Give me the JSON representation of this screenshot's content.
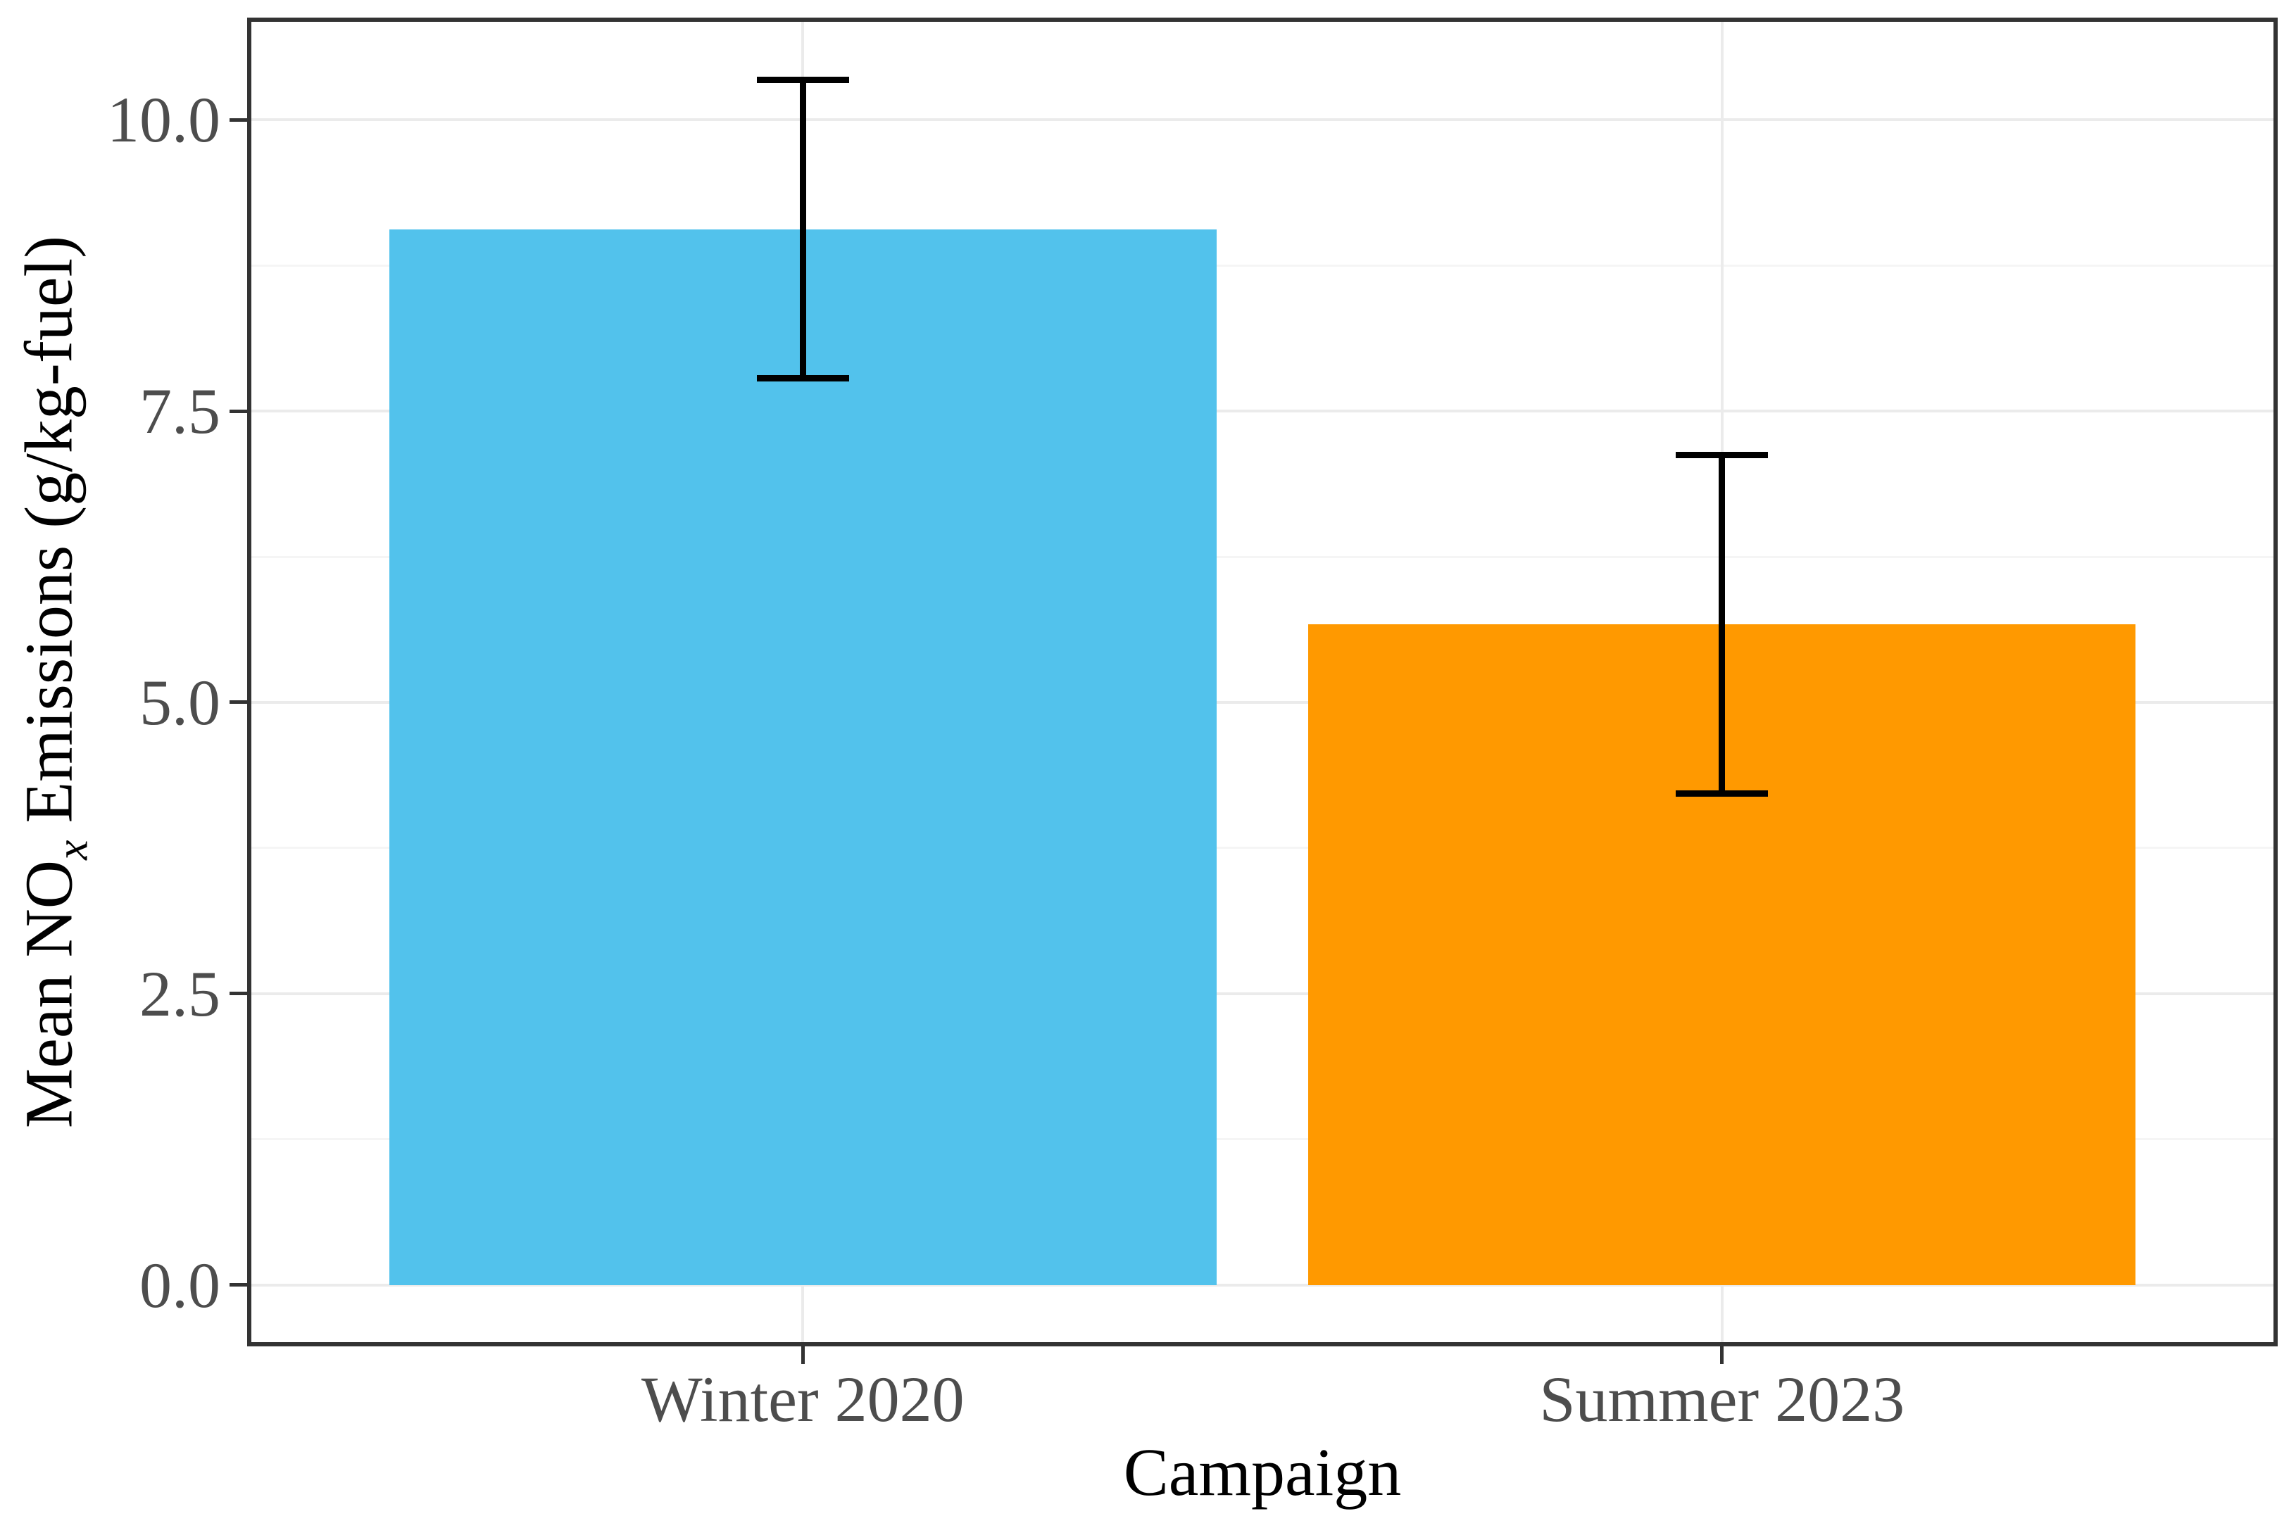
{
  "figure": {
    "background": "#FFFFFF"
  },
  "chart_data": {
    "type": "bar",
    "title": "",
    "xlabel": "Campaign",
    "ylabel_parts": {
      "prefix": "Mean NO",
      "sub": "x",
      "suffix": " Emissions (g/kg-fuel)"
    },
    "categories": [
      "Winter 2020",
      "Summer 2023"
    ],
    "values": [
      9.06,
      5.67
    ],
    "error_low": [
      7.78,
      4.22
    ],
    "error_high": [
      10.34,
      7.12
    ],
    "bar_colors": [
      "#52C2EC",
      "#FF9900"
    ],
    "ylim": [
      -0.49,
      10.84
    ],
    "y_major_ticks": [
      0,
      2.5,
      5,
      7.5,
      10
    ],
    "y_major_labels": [
      "0.0",
      "2.5",
      "5.0",
      "7.5",
      "10.0"
    ],
    "y_minor_ticks": [
      1.25,
      3.75,
      6.25,
      8.75
    ],
    "legend": "none",
    "grid": {
      "major_color": "#EBEBEB",
      "minor_color": "#F5F5F5"
    },
    "styles": {
      "error_color": "#000000",
      "axis_text_color": "#4D4D4D",
      "axis_title_color": "#000000",
      "panel_border_color": "#333333",
      "tick_color": "#333333"
    }
  }
}
